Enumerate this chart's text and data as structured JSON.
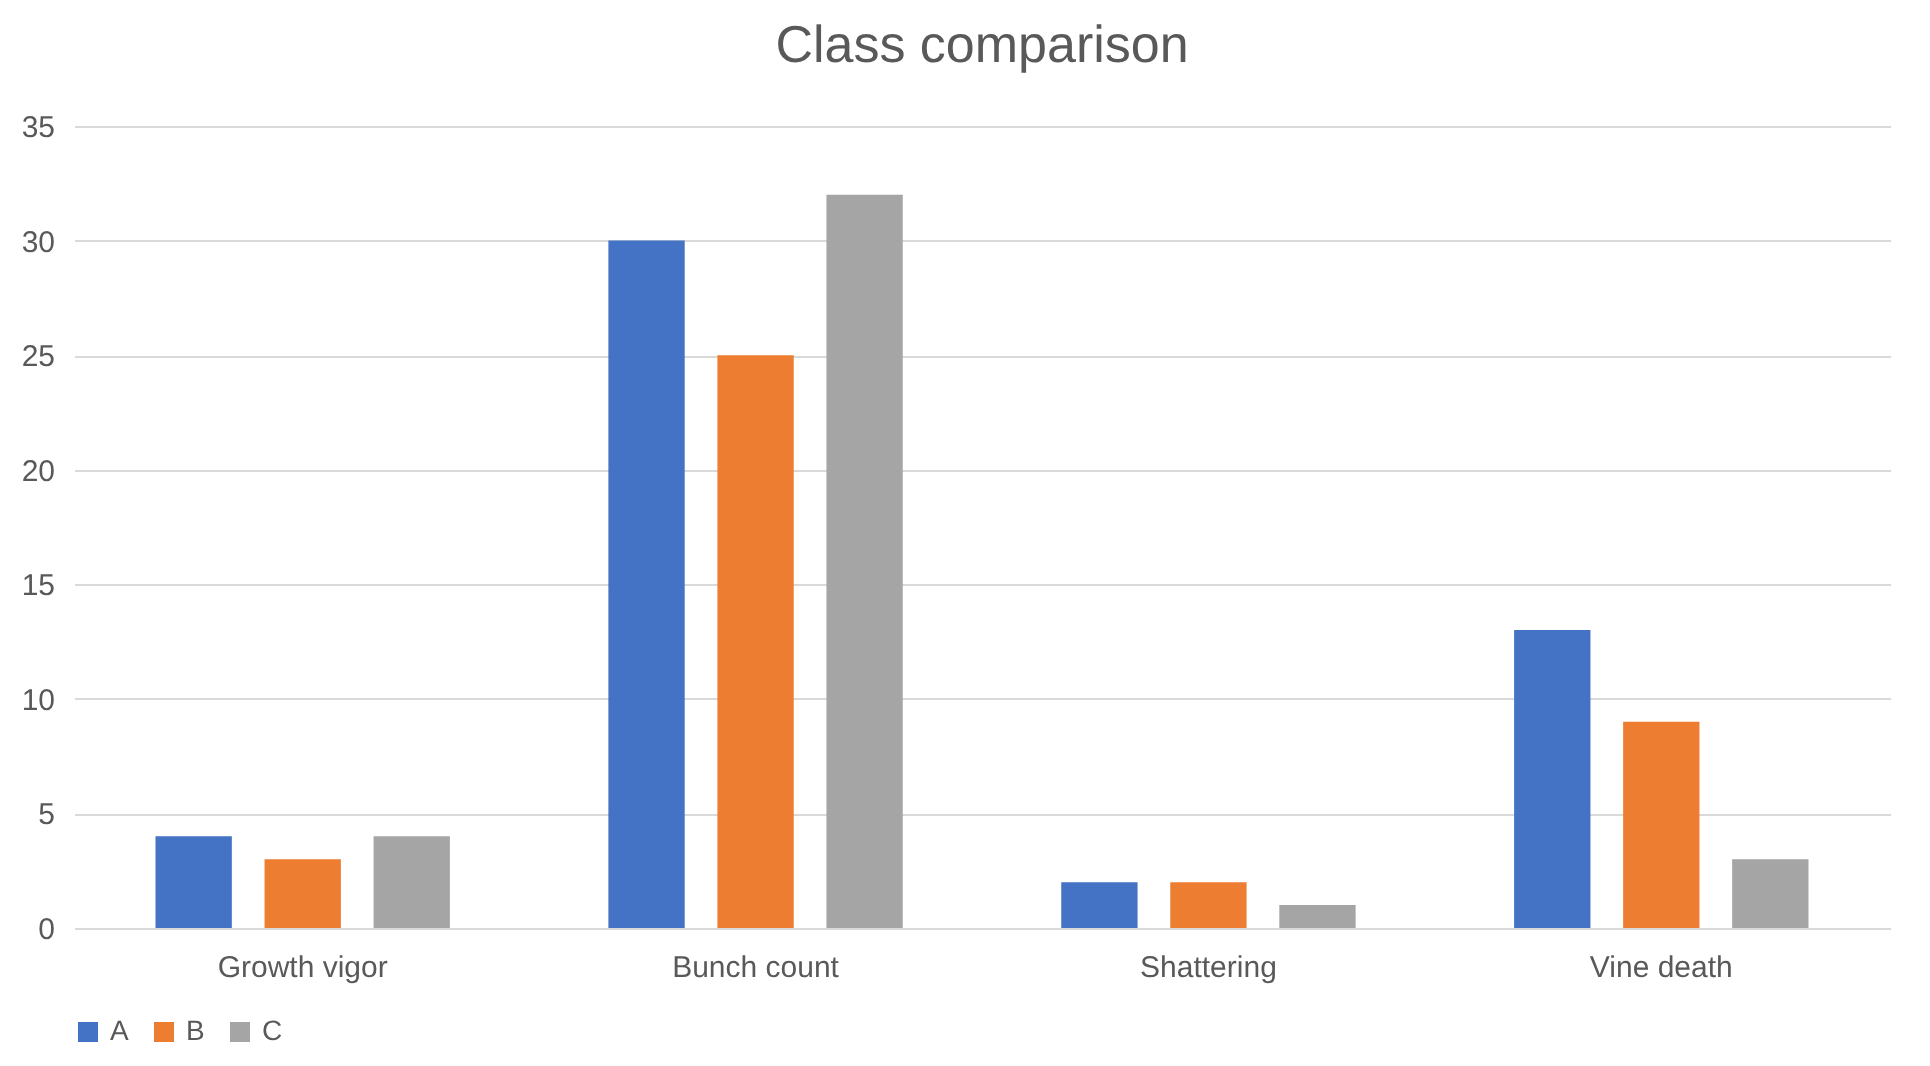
{
  "chart_data": {
    "type": "bar",
    "title": "Class comparison",
    "categories": [
      "Growth vigor",
      "Bunch count",
      "Shattering",
      "Vine death"
    ],
    "series": [
      {
        "name": "A",
        "color": "#4472c4",
        "values": [
          4,
          30,
          2,
          13
        ]
      },
      {
        "name": "B",
        "color": "#ed7d31",
        "values": [
          3,
          25,
          2,
          9
        ]
      },
      {
        "name": "C",
        "color": "#a5a5a5",
        "values": [
          4,
          32,
          1,
          3
        ]
      }
    ],
    "ylim": [
      0,
      35
    ],
    "yticks": [
      0,
      5,
      10,
      15,
      20,
      25,
      30,
      35
    ],
    "grid": "y",
    "legend": "bottom"
  }
}
